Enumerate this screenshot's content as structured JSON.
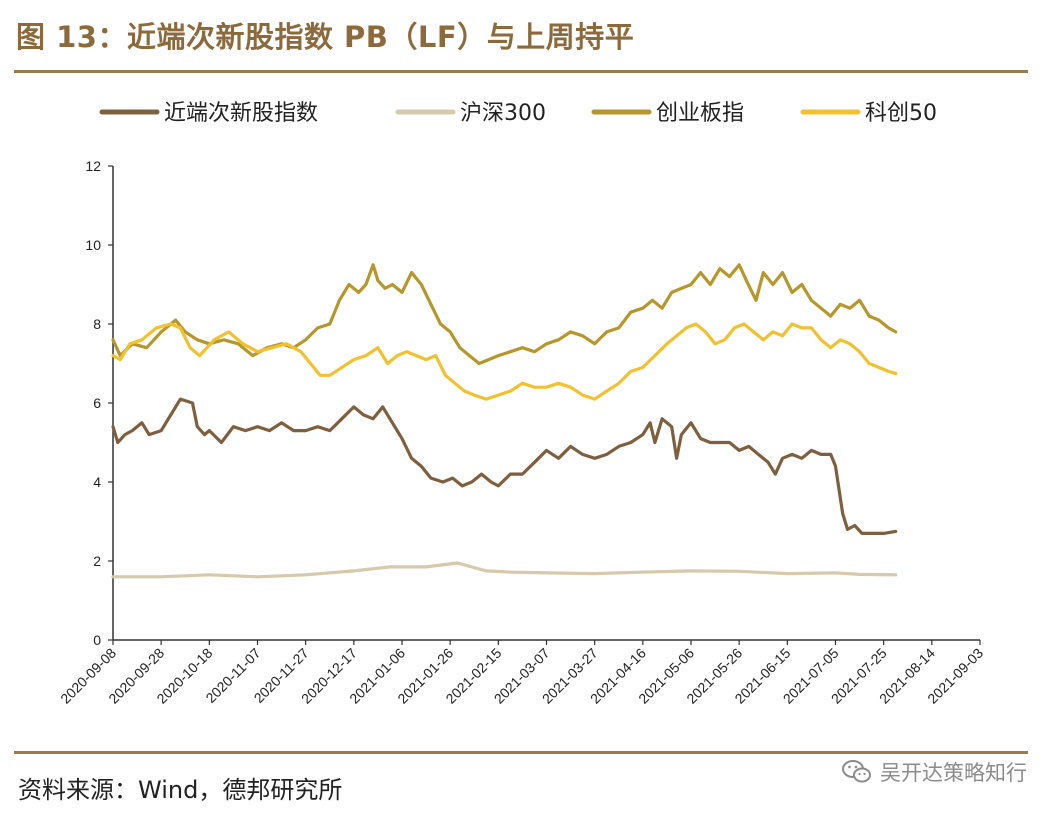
{
  "header": {
    "title": "图 13：近端次新股指数 PB（LF）与上周持平"
  },
  "footer": {
    "source": "资料来源：Wind，德邦研究所",
    "watermark": "吴开达策略知行",
    "watermark_icon": "wechat-icon"
  },
  "colors": {
    "accent": "#9B7A4B",
    "title": "#8C6A3C"
  },
  "chart_data": {
    "type": "line",
    "title": "近端次新股指数 PB（LF）与上周持平",
    "xlabel": "",
    "ylabel": "",
    "ylim": [
      0,
      12
    ],
    "yticks": [
      0,
      2,
      4,
      6,
      8,
      10,
      12
    ],
    "x_start": "2020-09-08",
    "x_end": "2021-09-03",
    "total_days": 360,
    "legend_position": "top",
    "grid": false,
    "xtick_labels": [
      "2020-09-08",
      "2020-09-28",
      "2020-10-18",
      "2020-11-07",
      "2020-11-27",
      "2020-12-17",
      "2021-01-06",
      "2021-01-26",
      "2021-02-15",
      "2021-03-07",
      "2021-03-27",
      "2021-04-16",
      "2021-05-06",
      "2021-05-26",
      "2021-06-15",
      "2021-07-05",
      "2021-07-25",
      "2021-08-14",
      "2021-09-03"
    ],
    "series": [
      {
        "name": "近端次新股指数",
        "color": "#7E5F3E",
        "points": [
          [
            0,
            5.4
          ],
          [
            2,
            5.0
          ],
          [
            5,
            5.2
          ],
          [
            8,
            5.3
          ],
          [
            12,
            5.5
          ],
          [
            15,
            5.2
          ],
          [
            20,
            5.3
          ],
          [
            25,
            5.8
          ],
          [
            28,
            6.1
          ],
          [
            33,
            6.0
          ],
          [
            35,
            5.4
          ],
          [
            38,
            5.2
          ],
          [
            40,
            5.3
          ],
          [
            45,
            5.0
          ],
          [
            50,
            5.4
          ],
          [
            55,
            5.3
          ],
          [
            60,
            5.4
          ],
          [
            65,
            5.3
          ],
          [
            70,
            5.5
          ],
          [
            75,
            5.3
          ],
          [
            80,
            5.3
          ],
          [
            85,
            5.4
          ],
          [
            90,
            5.3
          ],
          [
            95,
            5.6
          ],
          [
            100,
            5.9
          ],
          [
            104,
            5.7
          ],
          [
            108,
            5.6
          ],
          [
            112,
            5.9
          ],
          [
            116,
            5.5
          ],
          [
            120,
            5.1
          ],
          [
            124,
            4.6
          ],
          [
            128,
            4.4
          ],
          [
            132,
            4.1
          ],
          [
            137,
            4.0
          ],
          [
            141,
            4.1
          ],
          [
            145,
            3.9
          ],
          [
            149,
            4.0
          ],
          [
            153,
            4.2
          ],
          [
            157,
            4.0
          ],
          [
            160,
            3.9
          ],
          [
            165,
            4.2
          ],
          [
            170,
            4.2
          ],
          [
            175,
            4.5
          ],
          [
            180,
            4.8
          ],
          [
            185,
            4.6
          ],
          [
            190,
            4.9
          ],
          [
            195,
            4.7
          ],
          [
            200,
            4.6
          ],
          [
            205,
            4.7
          ],
          [
            210,
            4.9
          ],
          [
            215,
            5.0
          ],
          [
            220,
            5.2
          ],
          [
            223,
            5.5
          ],
          [
            225,
            5.0
          ],
          [
            228,
            5.6
          ],
          [
            232,
            5.4
          ],
          [
            234,
            4.6
          ],
          [
            236,
            5.2
          ],
          [
            240,
            5.5
          ],
          [
            244,
            5.1
          ],
          [
            248,
            5.0
          ],
          [
            252,
            5.0
          ],
          [
            256,
            5.0
          ],
          [
            260,
            4.8
          ],
          [
            264,
            4.9
          ],
          [
            268,
            4.7
          ],
          [
            272,
            4.5
          ],
          [
            275,
            4.2
          ],
          [
            278,
            4.6
          ],
          [
            282,
            4.7
          ],
          [
            286,
            4.6
          ],
          [
            290,
            4.8
          ],
          [
            294,
            4.7
          ],
          [
            298,
            4.7
          ],
          [
            300,
            4.4
          ],
          [
            303,
            3.2
          ],
          [
            305,
            2.8
          ],
          [
            308,
            2.9
          ],
          [
            311,
            2.7
          ],
          [
            315,
            2.7
          ],
          [
            320,
            2.7
          ],
          [
            325,
            2.75
          ]
        ]
      },
      {
        "name": "沪深300",
        "color": "#D6C9AC",
        "points": [
          [
            0,
            1.6
          ],
          [
            20,
            1.6
          ],
          [
            40,
            1.65
          ],
          [
            60,
            1.6
          ],
          [
            80,
            1.65
          ],
          [
            100,
            1.75
          ],
          [
            115,
            1.85
          ],
          [
            130,
            1.85
          ],
          [
            143,
            1.95
          ],
          [
            155,
            1.75
          ],
          [
            165,
            1.72
          ],
          [
            180,
            1.7
          ],
          [
            200,
            1.68
          ],
          [
            220,
            1.72
          ],
          [
            240,
            1.75
          ],
          [
            260,
            1.74
          ],
          [
            280,
            1.68
          ],
          [
            300,
            1.7
          ],
          [
            310,
            1.66
          ],
          [
            325,
            1.65
          ]
        ]
      },
      {
        "name": "创业板指",
        "color": "#B7962A",
        "points": [
          [
            0,
            7.6
          ],
          [
            3,
            7.2
          ],
          [
            8,
            7.5
          ],
          [
            14,
            7.4
          ],
          [
            20,
            7.8
          ],
          [
            26,
            8.1
          ],
          [
            30,
            7.8
          ],
          [
            35,
            7.6
          ],
          [
            40,
            7.5
          ],
          [
            46,
            7.6
          ],
          [
            52,
            7.5
          ],
          [
            58,
            7.2
          ],
          [
            64,
            7.4
          ],
          [
            70,
            7.5
          ],
          [
            75,
            7.4
          ],
          [
            80,
            7.6
          ],
          [
            85,
            7.9
          ],
          [
            90,
            8.0
          ],
          [
            94,
            8.6
          ],
          [
            98,
            9.0
          ],
          [
            102,
            8.8
          ],
          [
            105,
            9.0
          ],
          [
            108,
            9.5
          ],
          [
            110,
            9.1
          ],
          [
            113,
            8.9
          ],
          [
            116,
            9.0
          ],
          [
            120,
            8.8
          ],
          [
            124,
            9.3
          ],
          [
            128,
            9.0
          ],
          [
            132,
            8.5
          ],
          [
            136,
            8.0
          ],
          [
            140,
            7.8
          ],
          [
            144,
            7.4
          ],
          [
            148,
            7.2
          ],
          [
            152,
            7.0
          ],
          [
            156,
            7.1
          ],
          [
            160,
            7.2
          ],
          [
            165,
            7.3
          ],
          [
            170,
            7.4
          ],
          [
            175,
            7.3
          ],
          [
            180,
            7.5
          ],
          [
            185,
            7.6
          ],
          [
            190,
            7.8
          ],
          [
            195,
            7.7
          ],
          [
            200,
            7.5
          ],
          [
            205,
            7.8
          ],
          [
            210,
            7.9
          ],
          [
            215,
            8.3
          ],
          [
            220,
            8.4
          ],
          [
            224,
            8.6
          ],
          [
            228,
            8.4
          ],
          [
            232,
            8.8
          ],
          [
            236,
            8.9
          ],
          [
            240,
            9.0
          ],
          [
            244,
            9.3
          ],
          [
            248,
            9.0
          ],
          [
            252,
            9.4
          ],
          [
            256,
            9.2
          ],
          [
            260,
            9.5
          ],
          [
            263,
            9.1
          ],
          [
            267,
            8.6
          ],
          [
            270,
            9.3
          ],
          [
            274,
            9.0
          ],
          [
            278,
            9.3
          ],
          [
            282,
            8.8
          ],
          [
            286,
            9.0
          ],
          [
            290,
            8.6
          ],
          [
            294,
            8.4
          ],
          [
            298,
            8.2
          ],
          [
            302,
            8.5
          ],
          [
            306,
            8.4
          ],
          [
            310,
            8.6
          ],
          [
            314,
            8.2
          ],
          [
            318,
            8.1
          ],
          [
            322,
            7.9
          ],
          [
            325,
            7.8
          ]
        ]
      },
      {
        "name": "科创50",
        "color": "#F2C12E",
        "points": [
          [
            0,
            7.2
          ],
          [
            3,
            7.1
          ],
          [
            7,
            7.5
          ],
          [
            12,
            7.6
          ],
          [
            18,
            7.9
          ],
          [
            24,
            8.0
          ],
          [
            28,
            7.9
          ],
          [
            32,
            7.4
          ],
          [
            36,
            7.2
          ],
          [
            42,
            7.6
          ],
          [
            48,
            7.8
          ],
          [
            54,
            7.5
          ],
          [
            60,
            7.3
          ],
          [
            66,
            7.4
          ],
          [
            72,
            7.5
          ],
          [
            78,
            7.3
          ],
          [
            82,
            7.0
          ],
          [
            86,
            6.7
          ],
          [
            90,
            6.7
          ],
          [
            95,
            6.9
          ],
          [
            100,
            7.1
          ],
          [
            105,
            7.2
          ],
          [
            110,
            7.4
          ],
          [
            114,
            7.0
          ],
          [
            118,
            7.2
          ],
          [
            122,
            7.3
          ],
          [
            126,
            7.2
          ],
          [
            130,
            7.1
          ],
          [
            134,
            7.2
          ],
          [
            138,
            6.7
          ],
          [
            142,
            6.5
          ],
          [
            146,
            6.3
          ],
          [
            150,
            6.2
          ],
          [
            155,
            6.1
          ],
          [
            160,
            6.2
          ],
          [
            165,
            6.3
          ],
          [
            170,
            6.5
          ],
          [
            175,
            6.4
          ],
          [
            180,
            6.4
          ],
          [
            185,
            6.5
          ],
          [
            190,
            6.4
          ],
          [
            195,
            6.2
          ],
          [
            200,
            6.1
          ],
          [
            205,
            6.3
          ],
          [
            210,
            6.5
          ],
          [
            215,
            6.8
          ],
          [
            220,
            6.9
          ],
          [
            225,
            7.2
          ],
          [
            230,
            7.5
          ],
          [
            234,
            7.7
          ],
          [
            238,
            7.9
          ],
          [
            242,
            8.0
          ],
          [
            246,
            7.8
          ],
          [
            250,
            7.5
          ],
          [
            254,
            7.6
          ],
          [
            258,
            7.9
          ],
          [
            262,
            8.0
          ],
          [
            266,
            7.8
          ],
          [
            270,
            7.6
          ],
          [
            274,
            7.8
          ],
          [
            278,
            7.7
          ],
          [
            282,
            8.0
          ],
          [
            286,
            7.9
          ],
          [
            290,
            7.9
          ],
          [
            294,
            7.6
          ],
          [
            298,
            7.4
          ],
          [
            302,
            7.6
          ],
          [
            306,
            7.5
          ],
          [
            310,
            7.3
          ],
          [
            314,
            7.0
          ],
          [
            318,
            6.9
          ],
          [
            322,
            6.8
          ],
          [
            325,
            6.75
          ]
        ]
      }
    ]
  }
}
